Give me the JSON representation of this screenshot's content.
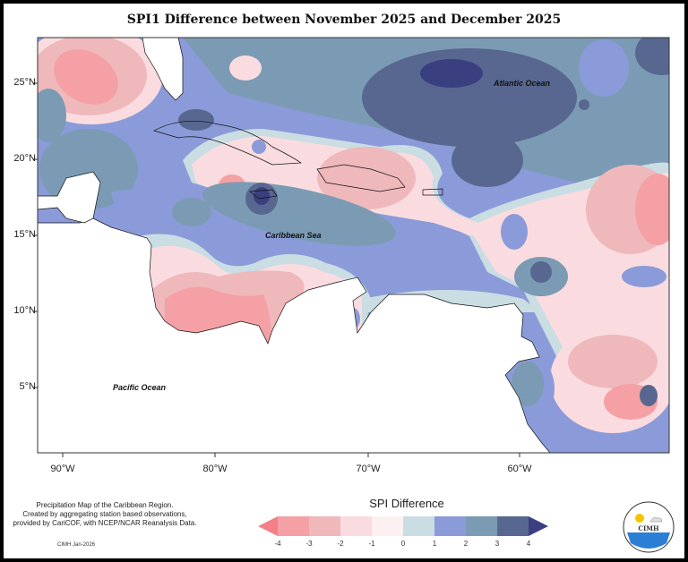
{
  "title": "SPI1 Difference between November 2025 and December 2025",
  "map": {
    "lat_labels": [
      "25°N",
      "20°N",
      "15°N",
      "10°N",
      "5°N"
    ],
    "lon_labels": [
      "90°W",
      "80°W",
      "70°W",
      "60°W"
    ],
    "region_labels": {
      "atlantic": "Atlantic Ocean",
      "caribbean": "Caribbean Sea",
      "pacific": "Pacific Ocean"
    }
  },
  "legend": {
    "title": "SPI Difference",
    "ticks": [
      "-4",
      "-3",
      "-2",
      "-1",
      "0",
      "1",
      "2",
      "3",
      "4"
    ],
    "colors": [
      "#f47f86",
      "#f4a0a4",
      "#efb8bb",
      "#fadce0",
      "#fdf0f0",
      "#c9dde3",
      "#8b9bd9",
      "#7b9bb4",
      "#58678f",
      "#3a3f80"
    ]
  },
  "credits": {
    "lines": [
      "Precipitation Map of the Caribbean Region.",
      "Created by aggregating station based observations,",
      "provided by CariCOF, with NCEP/NCAR Reanalysis Data."
    ],
    "stamp": "CIMH Jan-2026"
  },
  "logo": {
    "text": "CIMH"
  }
}
